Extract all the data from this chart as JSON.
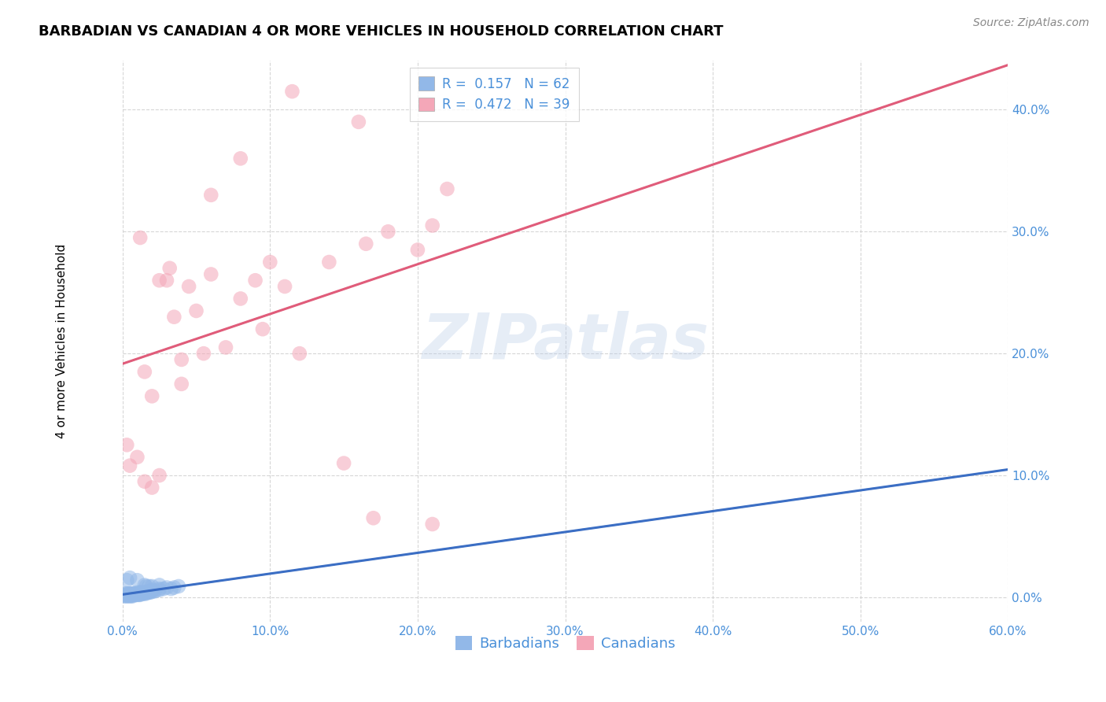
{
  "title": "BARBADIAN VS CANADIAN 4 OR MORE VEHICLES IN HOUSEHOLD CORRELATION CHART",
  "source": "Source: ZipAtlas.com",
  "ylabel": "4 or more Vehicles in Household",
  "watermark": "ZIPatlas",
  "xlim": [
    0.0,
    60.0
  ],
  "ylim": [
    -2.0,
    44.0
  ],
  "xticks": [
    0.0,
    10.0,
    20.0,
    30.0,
    40.0,
    50.0,
    60.0
  ],
  "yticks": [
    0.0,
    10.0,
    20.0,
    30.0,
    40.0
  ],
  "xtick_labels": [
    "0.0%",
    "10.0%",
    "20.0%",
    "30.0%",
    "40.0%",
    "50.0%",
    "60.0%"
  ],
  "ytick_labels": [
    "0.0%",
    "10.0%",
    "20.0%",
    "30.0%",
    "40.0%"
  ],
  "legend_blue_r": "0.157",
  "legend_blue_n": "62",
  "legend_pink_r": "0.472",
  "legend_pink_n": "39",
  "blue_color": "#92b8e8",
  "pink_color": "#f4a7b8",
  "blue_line_color": "#3b6ec4",
  "pink_line_color": "#e05c7a",
  "blue_scatter": [
    [
      0.1,
      0.1
    ],
    [
      0.1,
      0.2
    ],
    [
      0.2,
      0.1
    ],
    [
      0.2,
      0.3
    ],
    [
      0.3,
      0.1
    ],
    [
      0.3,
      0.2
    ],
    [
      0.3,
      0.3
    ],
    [
      0.4,
      0.1
    ],
    [
      0.4,
      0.2
    ],
    [
      0.4,
      0.3
    ],
    [
      0.5,
      0.1
    ],
    [
      0.5,
      0.2
    ],
    [
      0.5,
      0.3
    ],
    [
      0.6,
      0.1
    ],
    [
      0.6,
      0.2
    ],
    [
      0.6,
      0.3
    ],
    [
      0.7,
      0.1
    ],
    [
      0.7,
      0.2
    ],
    [
      0.7,
      0.3
    ],
    [
      0.8,
      0.2
    ],
    [
      0.8,
      0.3
    ],
    [
      0.9,
      0.2
    ],
    [
      0.9,
      0.3
    ],
    [
      1.0,
      0.2
    ],
    [
      1.0,
      0.3
    ],
    [
      1.0,
      0.4
    ],
    [
      1.1,
      0.2
    ],
    [
      1.1,
      0.3
    ],
    [
      1.2,
      0.2
    ],
    [
      1.2,
      0.3
    ],
    [
      1.2,
      0.4
    ],
    [
      1.3,
      0.3
    ],
    [
      1.3,
      0.4
    ],
    [
      1.4,
      0.3
    ],
    [
      1.4,
      0.4
    ],
    [
      1.5,
      0.3
    ],
    [
      1.5,
      0.4
    ],
    [
      1.6,
      0.3
    ],
    [
      1.6,
      0.4
    ],
    [
      1.7,
      0.4
    ],
    [
      1.8,
      0.4
    ],
    [
      1.8,
      0.5
    ],
    [
      1.9,
      0.4
    ],
    [
      2.0,
      0.5
    ],
    [
      2.0,
      0.6
    ],
    [
      2.1,
      0.5
    ],
    [
      2.2,
      0.5
    ],
    [
      2.5,
      0.6
    ],
    [
      2.5,
      0.7
    ],
    [
      2.8,
      0.7
    ],
    [
      3.0,
      0.8
    ],
    [
      3.3,
      0.7
    ],
    [
      3.5,
      0.8
    ],
    [
      3.8,
      0.9
    ],
    [
      0.3,
      1.4
    ],
    [
      0.5,
      1.6
    ],
    [
      1.0,
      1.4
    ],
    [
      1.5,
      1.0
    ],
    [
      1.6,
      0.9
    ],
    [
      1.8,
      0.9
    ],
    [
      2.0,
      0.9
    ],
    [
      2.5,
      1.0
    ]
  ],
  "pink_scatter": [
    [
      0.3,
      12.5
    ],
    [
      0.5,
      10.8
    ],
    [
      1.0,
      11.5
    ],
    [
      1.5,
      18.5
    ],
    [
      1.5,
      9.5
    ],
    [
      2.0,
      16.5
    ],
    [
      2.0,
      9.0
    ],
    [
      2.5,
      10.0
    ],
    [
      3.0,
      26.0
    ],
    [
      3.5,
      23.0
    ],
    [
      4.0,
      19.5
    ],
    [
      4.0,
      17.5
    ],
    [
      4.5,
      25.5
    ],
    [
      5.0,
      23.5
    ],
    [
      5.5,
      20.0
    ],
    [
      6.0,
      26.5
    ],
    [
      7.0,
      20.5
    ],
    [
      8.0,
      24.5
    ],
    [
      9.0,
      26.0
    ],
    [
      9.5,
      22.0
    ],
    [
      10.0,
      27.5
    ],
    [
      11.0,
      25.5
    ],
    [
      12.0,
      20.0
    ],
    [
      14.0,
      27.5
    ],
    [
      15.0,
      11.0
    ],
    [
      16.5,
      29.0
    ],
    [
      17.0,
      6.5
    ],
    [
      18.0,
      30.0
    ],
    [
      20.0,
      28.5
    ],
    [
      21.0,
      30.5
    ],
    [
      22.0,
      33.5
    ],
    [
      1.2,
      29.5
    ],
    [
      2.5,
      26.0
    ],
    [
      3.2,
      27.0
    ],
    [
      6.0,
      33.0
    ],
    [
      8.0,
      36.0
    ],
    [
      11.5,
      41.5
    ],
    [
      16.0,
      39.0
    ],
    [
      21.0,
      6.0
    ]
  ],
  "grid_color": "#cccccc",
  "background_color": "#ffffff",
  "title_fontsize": 13,
  "axis_label_fontsize": 11,
  "tick_fontsize": 11,
  "source_fontsize": 10,
  "legend_fontsize": 12
}
